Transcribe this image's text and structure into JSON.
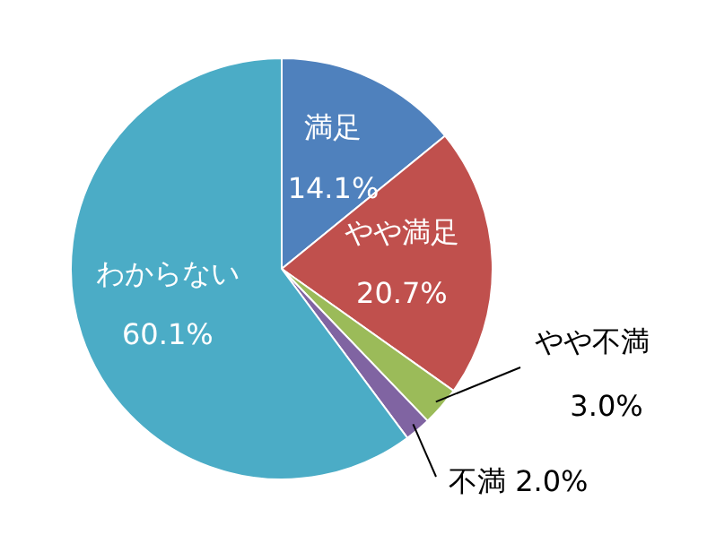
{
  "chart_data": {
    "type": "pie",
    "categories": [
      "満足",
      "やや満足",
      "やや不満",
      "不満",
      "わからない"
    ],
    "values": [
      14.1,
      20.7,
      3.0,
      2.0,
      60.1
    ],
    "colors": [
      "#4f81bd",
      "#c0504d",
      "#9bbb59",
      "#8064a2",
      "#4bacc6"
    ],
    "value_labels": [
      "14.1%",
      "20.7%",
      "3.0%",
      "2.0%",
      "60.1%"
    ],
    "legend": false
  }
}
